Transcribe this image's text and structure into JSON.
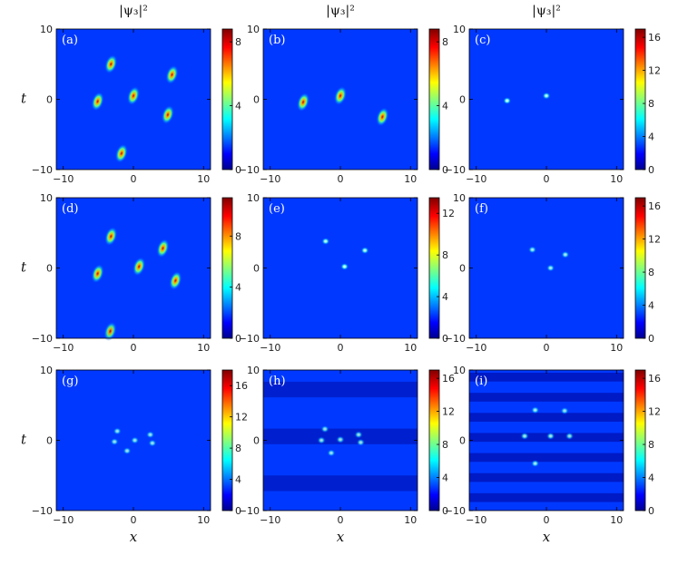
{
  "chart_data": {
    "type": "heatmap",
    "column_titles": [
      "|ψ₃|²",
      "|ψ₃|²",
      "|ψ₃|²"
    ],
    "xlabel": "x",
    "ylabel": "t",
    "xlim": [
      -11,
      11
    ],
    "ylim": [
      -10,
      10
    ],
    "xticks": [
      -10,
      0,
      10
    ],
    "yticks": [
      -10,
      0,
      10
    ],
    "colormap": "jet",
    "background_level": 0.18,
    "panels": [
      {
        "label": "(a)",
        "vmax": 8.8,
        "cbar_ticks": [
          0,
          4,
          8
        ],
        "peaks": [
          {
            "x": -3.2,
            "t": 5.0,
            "amp": 0.9
          },
          {
            "x": 5.5,
            "t": 3.5,
            "amp": 0.85
          },
          {
            "x": -5.1,
            "t": -0.3,
            "amp": 0.9
          },
          {
            "x": 0.0,
            "t": 0.5,
            "amp": 0.95
          },
          {
            "x": 4.9,
            "t": -2.2,
            "amp": 0.9
          },
          {
            "x": -1.7,
            "t": -7.7,
            "amp": 0.85
          }
        ]
      },
      {
        "label": "(b)",
        "vmax": 8.8,
        "cbar_ticks": [
          0,
          4,
          8
        ],
        "peaks": [
          {
            "x": -5.3,
            "t": -0.4,
            "amp": 0.85
          },
          {
            "x": 0.0,
            "t": 0.5,
            "amp": 0.9
          },
          {
            "x": 6.0,
            "t": -2.5,
            "amp": 0.95
          }
        ]
      },
      {
        "label": "(c)",
        "vmax": 17.0,
        "cbar_ticks": [
          0,
          4,
          8,
          12,
          16
        ],
        "peaks": [
          {
            "x": 0.0,
            "t": 0.5,
            "amp": 0.55
          },
          {
            "x": -5.6,
            "t": -0.2,
            "amp": 0.6
          }
        ]
      },
      {
        "label": "(d)",
        "vmax": 11.0,
        "cbar_ticks": [
          0,
          4,
          8
        ],
        "peaks": [
          {
            "x": -3.2,
            "t": 4.5,
            "amp": 0.7
          },
          {
            "x": 4.2,
            "t": 2.8,
            "amp": 0.7
          },
          {
            "x": -5.1,
            "t": -0.8,
            "amp": 0.65
          },
          {
            "x": 0.8,
            "t": 0.2,
            "amp": 0.7
          },
          {
            "x": 6.0,
            "t": -1.8,
            "amp": 0.65
          },
          {
            "x": -3.3,
            "t": -9.0,
            "amp": 0.5
          }
        ]
      },
      {
        "label": "(e)",
        "vmax": 13.5,
        "cbar_ticks": [
          0,
          4,
          8,
          12
        ],
        "peaks": [
          {
            "x": -2.1,
            "t": 3.8,
            "amp": 0.55
          },
          {
            "x": 3.5,
            "t": 2.5,
            "amp": 0.55
          },
          {
            "x": 0.6,
            "t": 0.2,
            "amp": 0.6
          }
        ]
      },
      {
        "label": "(f)",
        "vmax": 17.0,
        "cbar_ticks": [
          0,
          4,
          8,
          12,
          16
        ],
        "peaks": [
          {
            "x": -2.0,
            "t": 2.6,
            "amp": 0.45
          },
          {
            "x": 2.7,
            "t": 1.9,
            "amp": 0.45
          },
          {
            "x": 0.6,
            "t": 0.0,
            "amp": 0.45
          }
        ]
      },
      {
        "label": "(g)",
        "vmax": 18.0,
        "cbar_ticks": [
          0,
          4,
          8,
          12,
          16
        ],
        "peaks": [
          {
            "x": -2.3,
            "t": 1.3,
            "amp": 0.4
          },
          {
            "x": 2.4,
            "t": 0.8,
            "amp": 0.4
          },
          {
            "x": -2.7,
            "t": -0.2,
            "amp": 0.4
          },
          {
            "x": 0.2,
            "t": 0.0,
            "amp": 0.4
          },
          {
            "x": 2.7,
            "t": -0.4,
            "amp": 0.4
          },
          {
            "x": -0.9,
            "t": -1.5,
            "amp": 0.4
          }
        ]
      },
      {
        "label": "(h)",
        "vmax": 17.0,
        "cbar_ticks": [
          0,
          4,
          8,
          12,
          16
        ],
        "peaks": [
          {
            "x": -2.2,
            "t": 1.6,
            "amp": 0.4
          },
          {
            "x": 2.6,
            "t": 0.8,
            "amp": 0.4
          },
          {
            "x": -2.7,
            "t": 0.0,
            "amp": 0.4
          },
          {
            "x": 0.0,
            "t": 0.1,
            "amp": 0.4
          },
          {
            "x": 2.9,
            "t": -0.3,
            "amp": 0.4
          },
          {
            "x": -1.3,
            "t": -1.8,
            "amp": 0.4
          }
        ]
      },
      {
        "label": "(i)",
        "vmax": 17.0,
        "cbar_ticks": [
          0,
          4,
          8,
          12,
          16
        ],
        "peaks": [
          {
            "x": -1.6,
            "t": 4.3,
            "amp": 0.45
          },
          {
            "x": 2.6,
            "t": 4.2,
            "amp": 0.4
          },
          {
            "x": -3.1,
            "t": 0.6,
            "amp": 0.45
          },
          {
            "x": 0.6,
            "t": 0.6,
            "amp": 0.45
          },
          {
            "x": 3.3,
            "t": 0.6,
            "amp": 0.4
          },
          {
            "x": -1.6,
            "t": -3.3,
            "amp": 0.45
          }
        ]
      }
    ]
  }
}
